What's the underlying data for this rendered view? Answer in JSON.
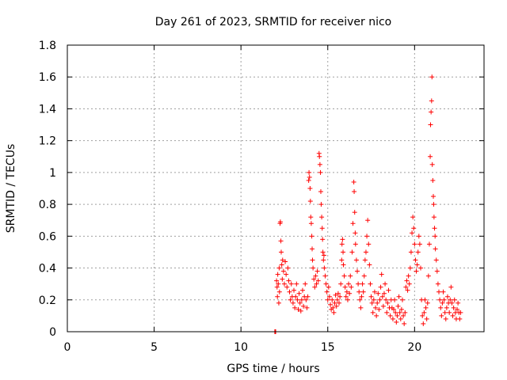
{
  "chart_data": {
    "type": "scatter",
    "title": "Day 261 of 2023, SRMTID for receiver nico",
    "xlabel": "GPS time / hours",
    "ylabel": "SRMTID / TECUs",
    "xlim": [
      0,
      24
    ],
    "ylim": [
      0,
      1.8
    ],
    "xticks": [
      0,
      5,
      10,
      15,
      20
    ],
    "xtick_labels": [
      "0",
      "5",
      "10",
      "15",
      "20"
    ],
    "yticks": [
      0,
      0.2,
      0.4,
      0.6,
      0.8,
      1.0,
      1.2,
      1.4,
      1.6,
      1.8
    ],
    "ytick_labels": [
      "0",
      "0.2",
      "0.4",
      "0.6",
      "0.8",
      "1",
      "1.2",
      "1.4",
      "1.6",
      "1.8"
    ],
    "grid": true,
    "marker": "+",
    "marker_color": "#ff0000",
    "series": [
      {
        "name": "SRMTID",
        "points": [
          [
            11.95,
            0.0
          ],
          [
            11.97,
            0.0
          ],
          [
            12.0,
            0.0
          ],
          [
            12.05,
            0.32
          ],
          [
            12.08,
            0.28
          ],
          [
            12.1,
            0.22
          ],
          [
            12.12,
            0.36
          ],
          [
            12.15,
            0.3
          ],
          [
            12.18,
            0.18
          ],
          [
            12.2,
            0.4
          ],
          [
            12.22,
            0.25
          ],
          [
            12.25,
            0.68
          ],
          [
            12.27,
            0.69
          ],
          [
            12.3,
            0.57
          ],
          [
            12.32,
            0.5
          ],
          [
            12.35,
            0.42
          ],
          [
            12.38,
            0.33
          ],
          [
            12.4,
            0.45
          ],
          [
            12.45,
            0.38
          ],
          [
            12.5,
            0.3
          ],
          [
            12.55,
            0.44
          ],
          [
            12.6,
            0.36
          ],
          [
            12.65,
            0.28
          ],
          [
            12.7,
            0.4
          ],
          [
            12.75,
            0.32
          ],
          [
            12.8,
            0.25
          ],
          [
            12.85,
            0.2
          ],
          [
            12.9,
            0.3
          ],
          [
            12.95,
            0.22
          ],
          [
            13.0,
            0.18
          ],
          [
            13.05,
            0.26
          ],
          [
            13.1,
            0.15
          ],
          [
            13.15,
            0.22
          ],
          [
            13.2,
            0.3
          ],
          [
            13.25,
            0.2
          ],
          [
            13.3,
            0.14
          ],
          [
            13.35,
            0.24
          ],
          [
            13.4,
            0.18
          ],
          [
            13.45,
            0.13
          ],
          [
            13.5,
            0.2
          ],
          [
            13.55,
            0.26
          ],
          [
            13.6,
            0.16
          ],
          [
            13.65,
            0.22
          ],
          [
            13.7,
            0.3
          ],
          [
            13.75,
            0.2
          ],
          [
            13.8,
            0.15
          ],
          [
            13.85,
            0.22
          ],
          [
            13.9,
            0.95
          ],
          [
            13.92,
            1.0
          ],
          [
            13.95,
            0.97
          ],
          [
            13.98,
            0.9
          ],
          [
            14.0,
            0.82
          ],
          [
            14.02,
            0.72
          ],
          [
            14.05,
            0.68
          ],
          [
            14.08,
            0.6
          ],
          [
            14.1,
            0.52
          ],
          [
            14.12,
            0.45
          ],
          [
            14.15,
            0.4
          ],
          [
            14.2,
            0.33
          ],
          [
            14.25,
            0.28
          ],
          [
            14.3,
            0.35
          ],
          [
            14.35,
            0.3
          ],
          [
            14.4,
            0.38
          ],
          [
            14.45,
            0.32
          ],
          [
            14.5,
            1.12
          ],
          [
            14.52,
            1.1
          ],
          [
            14.55,
            1.05
          ],
          [
            14.58,
            1.0
          ],
          [
            14.6,
            0.88
          ],
          [
            14.62,
            0.8
          ],
          [
            14.65,
            0.72
          ],
          [
            14.68,
            0.65
          ],
          [
            14.7,
            0.58
          ],
          [
            14.72,
            0.5
          ],
          [
            14.75,
            0.45
          ],
          [
            14.78,
            0.48
          ],
          [
            14.8,
            0.4
          ],
          [
            14.85,
            0.35
          ],
          [
            14.9,
            0.3
          ],
          [
            14.95,
            0.25
          ],
          [
            15.0,
            0.2
          ],
          [
            15.05,
            0.28
          ],
          [
            15.1,
            0.22
          ],
          [
            15.15,
            0.17
          ],
          [
            15.2,
            0.14
          ],
          [
            15.25,
            0.2
          ],
          [
            15.3,
            0.15
          ],
          [
            15.35,
            0.12
          ],
          [
            15.4,
            0.18
          ],
          [
            15.45,
            0.23
          ],
          [
            15.5,
            0.16
          ],
          [
            15.55,
            0.2
          ],
          [
            15.6,
            0.24
          ],
          [
            15.65,
            0.18
          ],
          [
            15.7,
            0.22
          ],
          [
            15.75,
            0.3
          ],
          [
            15.8,
            0.45
          ],
          [
            15.82,
            0.55
          ],
          [
            15.85,
            0.58
          ],
          [
            15.88,
            0.5
          ],
          [
            15.9,
            0.42
          ],
          [
            15.95,
            0.35
          ],
          [
            16.0,
            0.28
          ],
          [
            16.05,
            0.22
          ],
          [
            16.1,
            0.25
          ],
          [
            16.15,
            0.2
          ],
          [
            16.2,
            0.3
          ],
          [
            16.25,
            0.24
          ],
          [
            16.3,
            0.35
          ],
          [
            16.35,
            0.28
          ],
          [
            16.4,
            0.5
          ],
          [
            16.45,
            0.68
          ],
          [
            16.5,
            0.94
          ],
          [
            16.52,
            0.88
          ],
          [
            16.55,
            0.75
          ],
          [
            16.58,
            0.62
          ],
          [
            16.6,
            0.55
          ],
          [
            16.65,
            0.45
          ],
          [
            16.7,
            0.38
          ],
          [
            16.75,
            0.3
          ],
          [
            16.8,
            0.25
          ],
          [
            16.85,
            0.2
          ],
          [
            16.9,
            0.15
          ],
          [
            16.95,
            0.22
          ],
          [
            17.0,
            0.3
          ],
          [
            17.05,
            0.25
          ],
          [
            17.1,
            0.35
          ],
          [
            17.15,
            0.45
          ],
          [
            17.2,
            0.5
          ],
          [
            17.25,
            0.6
          ],
          [
            17.3,
            0.7
          ],
          [
            17.35,
            0.55
          ],
          [
            17.4,
            0.42
          ],
          [
            17.45,
            0.3
          ],
          [
            17.5,
            0.22
          ],
          [
            17.55,
            0.18
          ],
          [
            17.6,
            0.12
          ],
          [
            17.65,
            0.2
          ],
          [
            17.7,
            0.25
          ],
          [
            17.75,
            0.15
          ],
          [
            17.8,
            0.1
          ],
          [
            17.85,
            0.18
          ],
          [
            17.9,
            0.24
          ],
          [
            17.95,
            0.14
          ],
          [
            18.0,
            0.2
          ],
          [
            18.05,
            0.28
          ],
          [
            18.1,
            0.36
          ],
          [
            18.15,
            0.22
          ],
          [
            18.2,
            0.16
          ],
          [
            18.25,
            0.24
          ],
          [
            18.3,
            0.3
          ],
          [
            18.35,
            0.2
          ],
          [
            18.4,
            0.12
          ],
          [
            18.45,
            0.18
          ],
          [
            18.5,
            0.26
          ],
          [
            18.55,
            0.15
          ],
          [
            18.6,
            0.1
          ],
          [
            18.65,
            0.2
          ],
          [
            18.7,
            0.15
          ],
          [
            18.75,
            0.08
          ],
          [
            18.8,
            0.14
          ],
          [
            18.85,
            0.2
          ],
          [
            18.9,
            0.12
          ],
          [
            18.95,
            0.06
          ],
          [
            19.0,
            0.1
          ],
          [
            19.05,
            0.16
          ],
          [
            19.1,
            0.22
          ],
          [
            19.15,
            0.12
          ],
          [
            19.2,
            0.08
          ],
          [
            19.25,
            0.14
          ],
          [
            19.3,
            0.2
          ],
          [
            19.35,
            0.1
          ],
          [
            19.4,
            0.05
          ],
          [
            19.45,
            0.12
          ],
          [
            19.5,
            0.28
          ],
          [
            19.55,
            0.32
          ],
          [
            19.6,
            0.26
          ],
          [
            19.65,
            0.35
          ],
          [
            19.7,
            0.3
          ],
          [
            19.75,
            0.4
          ],
          [
            19.8,
            0.5
          ],
          [
            19.85,
            0.62
          ],
          [
            19.9,
            0.72
          ],
          [
            19.95,
            0.65
          ],
          [
            20.0,
            0.55
          ],
          [
            20.05,
            0.45
          ],
          [
            20.1,
            0.38
          ],
          [
            20.15,
            0.42
          ],
          [
            20.2,
            0.5
          ],
          [
            20.25,
            0.6
          ],
          [
            20.3,
            0.55
          ],
          [
            20.35,
            0.4
          ],
          [
            20.4,
            0.2
          ],
          [
            20.45,
            0.1
          ],
          [
            20.5,
            0.05
          ],
          [
            20.55,
            0.12
          ],
          [
            20.6,
            0.2
          ],
          [
            20.65,
            0.15
          ],
          [
            20.7,
            0.08
          ],
          [
            20.75,
            0.18
          ],
          [
            20.8,
            0.35
          ],
          [
            20.85,
            0.55
          ],
          [
            20.9,
            1.1
          ],
          [
            20.92,
            1.3
          ],
          [
            20.95,
            1.38
          ],
          [
            20.98,
            1.45
          ],
          [
            21.0,
            1.6
          ],
          [
            21.02,
            1.05
          ],
          [
            21.05,
            0.95
          ],
          [
            21.08,
            0.85
          ],
          [
            21.1,
            0.8
          ],
          [
            21.12,
            0.72
          ],
          [
            21.15,
            0.65
          ],
          [
            21.18,
            0.6
          ],
          [
            21.2,
            0.52
          ],
          [
            21.25,
            0.45
          ],
          [
            21.3,
            0.38
          ],
          [
            21.35,
            0.3
          ],
          [
            21.4,
            0.25
          ],
          [
            21.45,
            0.2
          ],
          [
            21.5,
            0.15
          ],
          [
            21.55,
            0.1
          ],
          [
            21.6,
            0.18
          ],
          [
            21.65,
            0.25
          ],
          [
            21.7,
            0.2
          ],
          [
            21.75,
            0.12
          ],
          [
            21.8,
            0.08
          ],
          [
            21.85,
            0.15
          ],
          [
            21.9,
            0.22
          ],
          [
            21.95,
            0.18
          ],
          [
            22.0,
            0.12
          ],
          [
            22.05,
            0.2
          ],
          [
            22.1,
            0.28
          ],
          [
            22.15,
            0.18
          ],
          [
            22.2,
            0.1
          ],
          [
            22.25,
            0.15
          ],
          [
            22.3,
            0.2
          ],
          [
            22.35,
            0.12
          ],
          [
            22.4,
            0.08
          ],
          [
            22.45,
            0.14
          ],
          [
            22.5,
            0.18
          ],
          [
            22.55,
            0.12
          ],
          [
            22.6,
            0.08
          ],
          [
            22.65,
            0.12
          ]
        ]
      }
    ]
  }
}
